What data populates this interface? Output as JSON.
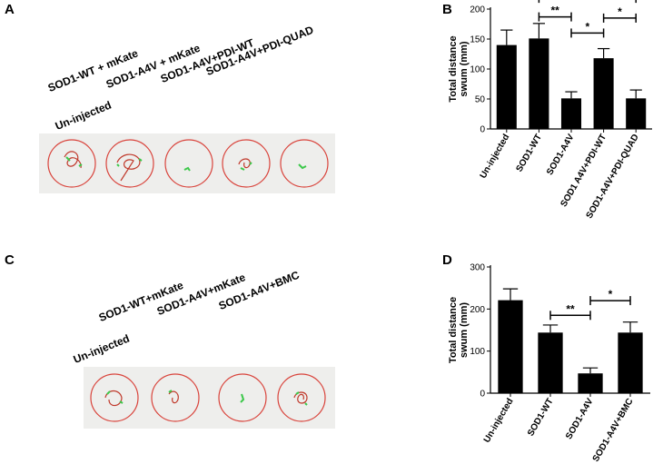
{
  "panels": {
    "A": {
      "letter": "A",
      "labels": [
        "Un-injected",
        "SOD1-WT + mKate",
        "SOD1-A4V + mKate",
        "SOD1-A4V+PDI-WT",
        "SOD1-A4V+PDI-QUAD"
      ]
    },
    "B": {
      "letter": "B"
    },
    "C": {
      "letter": "C",
      "labels": [
        "Un-injected",
        "SOD1-WT+mKate",
        "SOD1-A4V+mKate",
        "SOD1-A4V+BMC"
      ]
    },
    "D": {
      "letter": "D"
    }
  },
  "chart_data": [
    {
      "panel": "B",
      "type": "bar",
      "categories": [
        "Un-injected",
        "SOD1-WT",
        "SOD1-A4V",
        "SOD1 A4V+PDI-WT",
        "SOD1-A4V+PDI-QUAD"
      ],
      "values": [
        140,
        151,
        51,
        118,
        51
      ],
      "errors": [
        25,
        25,
        11,
        16,
        14
      ],
      "ylabel": "Total distance swum (mm)",
      "ylabel_lines": [
        "Total distance",
        "swum (mm)"
      ],
      "ylim": [
        0,
        200
      ],
      "yticks": [
        0,
        50,
        100,
        150,
        200
      ],
      "significance": [
        {
          "from": 1,
          "to": 2,
          "label": "**",
          "y": 187
        },
        {
          "from": 1,
          "to": 4,
          "label": "**",
          "y": 218
        },
        {
          "from": 2,
          "to": 3,
          "label": "*",
          "y": 160
        },
        {
          "from": 3,
          "to": 4,
          "label": "*",
          "y": 185
        }
      ]
    },
    {
      "panel": "D",
      "type": "bar",
      "categories": [
        "Un-injected",
        "SOD1-WT",
        "SOD1-A4V",
        "SOD1-A4V+BMC"
      ],
      "values": [
        221,
        144,
        47,
        144
      ],
      "errors": [
        27,
        18,
        13,
        25
      ],
      "ylabel": "Total distance swum (mm)",
      "ylabel_lines": [
        "Total distance",
        "swum (mm)"
      ],
      "ylim": [
        0,
        300
      ],
      "yticks": [
        0,
        100,
        200,
        300
      ],
      "significance": [
        {
          "from": 1,
          "to": 2,
          "label": "**",
          "y": 185
        },
        {
          "from": 2,
          "to": 3,
          "label": "*",
          "y": 220
        }
      ]
    }
  ]
}
